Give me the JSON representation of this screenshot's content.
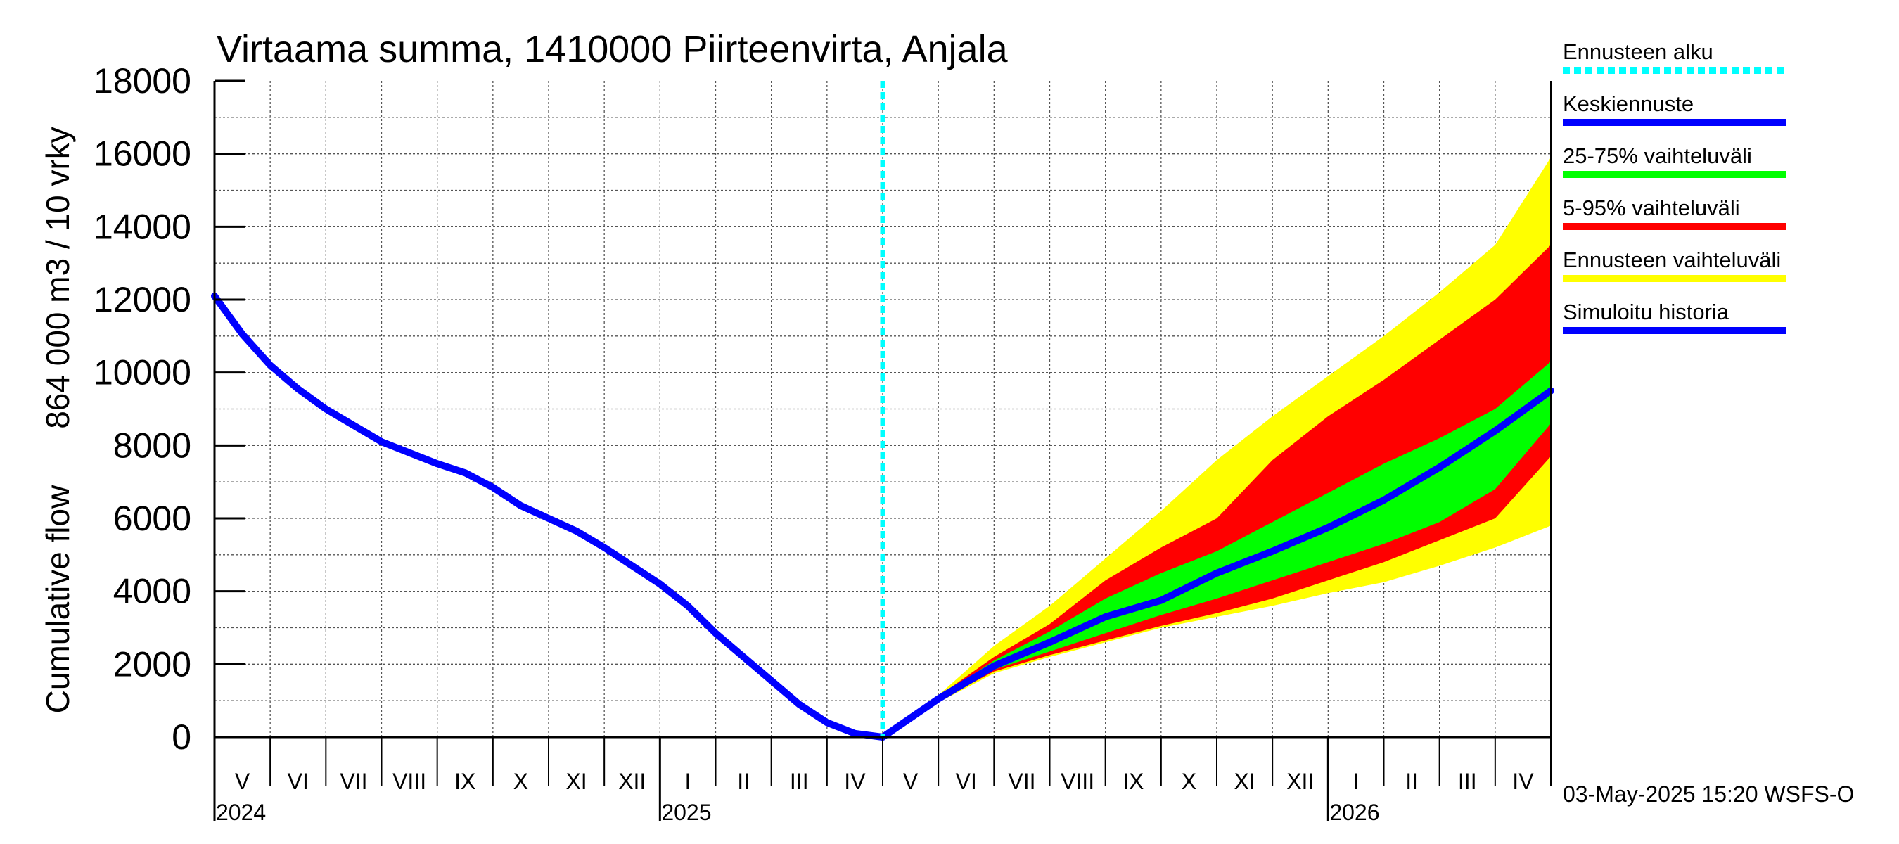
{
  "chart_data": {
    "type": "area",
    "title": "Virtaama summa, 1410000 Piirteenvirta, Anjala",
    "ylabel_lines": [
      "864 000 m3 / 10 vrky",
      "Cumulative flow"
    ],
    "ylim": [
      0,
      18000
    ],
    "yticks": [
      0,
      2000,
      4000,
      6000,
      8000,
      10000,
      12000,
      14000,
      16000,
      18000
    ],
    "ytick_labels": [
      "0",
      "2000",
      "4000",
      "6000",
      "8000",
      "10000",
      "12000",
      "14000",
      "16000",
      "18000"
    ],
    "xlim_months": [
      0,
      24
    ],
    "month_labels": [
      "V",
      "VI",
      "VII",
      "VIII",
      "IX",
      "X",
      "XI",
      "XII",
      "I",
      "II",
      "III",
      "IV",
      "V",
      "VI",
      "VII",
      "VIII",
      "IX",
      "X",
      "XI",
      "XII",
      "I",
      "II",
      "III",
      "IV"
    ],
    "year_labels": [
      {
        "label": "2024",
        "at_month": 0
      },
      {
        "label": "2025",
        "at_month": 8
      },
      {
        "label": "2026",
        "at_month": 20
      }
    ],
    "forecast_start_month": 12,
    "series": [
      {
        "name": "Simuloitu historia",
        "kind": "line",
        "color": "#0000ff",
        "x": [
          0,
          0.5,
          1,
          1.5,
          2,
          3,
          4,
          4.5,
          5,
          5.5,
          6,
          6.5,
          7,
          7.5,
          8,
          8.5,
          9,
          9.5,
          10,
          10.5,
          11,
          11.5,
          12
        ],
        "values": [
          12100,
          11050,
          10200,
          9550,
          9000,
          8100,
          7500,
          7250,
          6850,
          6350,
          6000,
          5650,
          5200,
          4700,
          4200,
          3600,
          2850,
          2200,
          1550,
          900,
          400,
          100,
          0
        ]
      },
      {
        "name": "Ennusteen vaihteluväli",
        "kind": "band",
        "color": "#ffff00",
        "x": [
          12,
          13,
          14,
          15,
          16,
          17,
          18,
          19,
          20,
          21,
          22,
          23,
          24
        ],
        "upper": [
          0,
          1150,
          2500,
          3600,
          4900,
          6200,
          7600,
          8800,
          9900,
          11000,
          12200,
          13500,
          15900
        ],
        "lower": [
          0,
          950,
          1750,
          2200,
          2600,
          3000,
          3300,
          3600,
          3950,
          4250,
          4700,
          5200,
          5800
        ]
      },
      {
        "name": "5-95% vaihteluväli",
        "kind": "band",
        "color": "#ff0000",
        "x": [
          12,
          13,
          14,
          15,
          16,
          17,
          18,
          19,
          20,
          21,
          22,
          23,
          24
        ],
        "upper": [
          0,
          1120,
          2200,
          3100,
          4300,
          5200,
          6000,
          7600,
          8800,
          9800,
          10900,
          12000,
          13500
        ],
        "lower": [
          0,
          1000,
          1800,
          2250,
          2650,
          3050,
          3400,
          3800,
          4300,
          4800,
          5400,
          6000,
          7700
        ]
      },
      {
        "name": "25-75% vaihteluväli",
        "kind": "band",
        "color": "#00ff00",
        "x": [
          12,
          13,
          14,
          15,
          16,
          17,
          18,
          19,
          20,
          21,
          22,
          23,
          24
        ],
        "upper": [
          0,
          1080,
          2100,
          2900,
          3800,
          4500,
          5100,
          5900,
          6700,
          7500,
          8200,
          9000,
          10300
        ],
        "lower": [
          0,
          1020,
          1850,
          2350,
          2850,
          3350,
          3800,
          4300,
          4800,
          5300,
          5900,
          6800,
          8600
        ]
      },
      {
        "name": "Keskiennuste",
        "kind": "line",
        "color": "#0000ff",
        "x": [
          12,
          13,
          14,
          15,
          16,
          17,
          18,
          19,
          20,
          21,
          22,
          23,
          24
        ],
        "values": [
          0,
          1050,
          1950,
          2600,
          3300,
          3750,
          4500,
          5100,
          5750,
          6500,
          7400,
          8400,
          9500
        ]
      }
    ],
    "legend": [
      {
        "label": "Ennusteen alku",
        "color": "#00ffff",
        "dashed": true
      },
      {
        "label": "Keskiennuste",
        "color": "#0000ff",
        "dashed": false
      },
      {
        "label": "25-75% vaihteluväli",
        "color": "#00ff00",
        "dashed": false
      },
      {
        "label": "5-95% vaihteluväli",
        "color": "#ff0000",
        "dashed": false
      },
      {
        "label": "Ennusteen vaihteluväli",
        "color": "#ffff00",
        "dashed": false
      },
      {
        "label": "Simuloitu historia",
        "color": "#0000ff",
        "dashed": false
      }
    ],
    "footer": "03-May-2025 15:20 WSFS-O"
  }
}
